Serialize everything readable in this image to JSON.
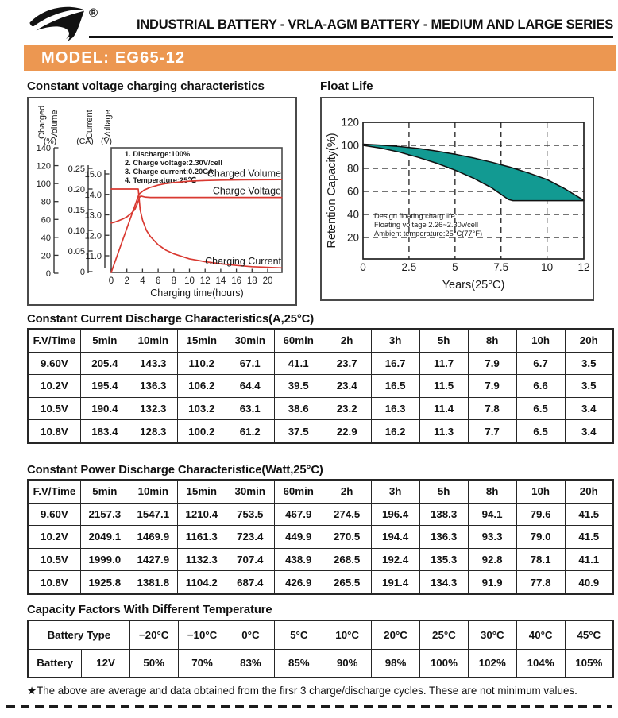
{
  "header": {
    "series_title": "INDUSTRIAL BATTERY - VRLA-AGM BATTERY - MEDIUM AND LARGE SERIES",
    "registered_mark": "®"
  },
  "model_banner": {
    "label": "MODEL: EG65-12"
  },
  "colors": {
    "banner_orange": "#EC9751",
    "curve_red": "#D93931",
    "band_teal": "#129A92"
  },
  "charging_chart": {
    "title": "Constant voltage charging characteristics",
    "conditions": [
      "1. Discharge:100%",
      "2. Charge voltage:2.30V/cell",
      "3. Charge current:0.20CA",
      "4. Temperature:25℃"
    ],
    "axis_charged_volume": {
      "title_words": [
        "Charged",
        "Volume"
      ],
      "unit": "(%)",
      "ticks": [
        "140",
        "120",
        "100",
        "80",
        "60",
        "40",
        "20",
        "0"
      ]
    },
    "axis_current": {
      "title_words": [
        "Current"
      ],
      "unit": "(CA)",
      "ticks": [
        "0.25",
        "0.20",
        "0.15",
        "0.10",
        "0.05",
        "0"
      ]
    },
    "axis_voltage": {
      "title_words": [
        "Voltage"
      ],
      "unit": "(V)",
      "ticks": [
        "15.0",
        "14.0",
        "13.0",
        "12.0",
        "11.0"
      ]
    },
    "x_axis": {
      "title": "Charging time(hours)",
      "ticks": [
        "0",
        "2",
        "4",
        "6",
        "8",
        "10",
        "12",
        "14",
        "16",
        "18",
        "20"
      ]
    },
    "curve_labels": {
      "charged_volume": "Charged Volume",
      "charge_voltage": "Charge Voltage",
      "charging_current": "Charging Current"
    }
  },
  "float_life_chart": {
    "title": "Float Life",
    "y_label": "Retention Capacity(%)",
    "x_label": "Years(25°C)",
    "y_ticks": [
      "120",
      "100",
      "80",
      "60",
      "40",
      "20"
    ],
    "x_ticks": [
      "0",
      "2.5",
      "5",
      "7.5",
      "10",
      "12"
    ],
    "note_lines": [
      "Design floating charg life:",
      "Floating voltage 2.26~2.30v/cell",
      "Ambient temperature:25°C(77°F)"
    ]
  },
  "chart_data": [
    {
      "type": "line",
      "title": "Constant voltage charging characteristics",
      "xlabel": "Charging time(hours)",
      "xlim": [
        0,
        21.8
      ],
      "series": [
        {
          "name": "Charged Volume",
          "unit": "%",
          "axis_range": [
            0,
            140
          ],
          "points": [
            [
              0,
              0
            ],
            [
              3.55,
              88
            ],
            [
              4.2,
              92.5
            ],
            [
              5,
              95.5
            ],
            [
              6,
              98
            ],
            [
              7,
              99.8
            ],
            [
              8,
              101
            ],
            [
              10,
              102.5
            ],
            [
              12,
              103.2
            ],
            [
              14,
              103.7
            ],
            [
              17,
              104
            ],
            [
              21.8,
              104.2
            ]
          ]
        },
        {
          "name": "Charge Voltage",
          "unit": "V",
          "axis_range": [
            11,
            15
          ],
          "points": [
            [
              0,
              12.6
            ],
            [
              0.5,
              12.65
            ],
            [
              1,
              12.72
            ],
            [
              1.5,
              12.8
            ],
            [
              2,
              12.9
            ],
            [
              2.5,
              13.05
            ],
            [
              3,
              13.25
            ],
            [
              3.3,
              13.5
            ],
            [
              3.6,
              13.85
            ],
            [
              3.8,
              13.92
            ],
            [
              4.3,
              13.87
            ],
            [
              5,
              13.85
            ],
            [
              21.8,
              13.85
            ]
          ]
        },
        {
          "name": "Charging Current",
          "unit": "CA",
          "axis_range": [
            0,
            0.25
          ],
          "points": [
            [
              0,
              0.2
            ],
            [
              3.45,
              0.2
            ],
            [
              3.55,
              0.18
            ],
            [
              3.7,
              0.15
            ],
            [
              4,
              0.125
            ],
            [
              4.5,
              0.1
            ],
            [
              5,
              0.085
            ],
            [
              6,
              0.065
            ],
            [
              7,
              0.052
            ],
            [
              8,
              0.043
            ],
            [
              10,
              0.031
            ],
            [
              12,
              0.024
            ],
            [
              14,
              0.019
            ],
            [
              16,
              0.015
            ],
            [
              18,
              0.012
            ],
            [
              21.8,
              0.009
            ]
          ]
        }
      ]
    },
    {
      "type": "area",
      "title": "Float Life",
      "xlabel": "Years(25°C)",
      "ylabel": "Retention Capacity(%)",
      "xlim": [
        0,
        12
      ],
      "ylim": [
        0,
        120
      ],
      "series": [
        {
          "name": "retention upper bound",
          "points": [
            [
              0,
              101
            ],
            [
              1,
              100.2
            ],
            [
              2,
              99
            ],
            [
              3,
              97.3
            ],
            [
              4,
              95
            ],
            [
              5,
              92.3
            ],
            [
              6,
              89
            ],
            [
              7,
              85.3
            ],
            [
              8,
              81
            ],
            [
              9,
              76
            ],
            [
              10,
              70.3
            ],
            [
              11,
              62
            ],
            [
              12,
              52.3
            ]
          ]
        },
        {
          "name": "retention lower bound",
          "points": [
            [
              0,
              100
            ],
            [
              1,
              97.5
            ],
            [
              2,
              94
            ],
            [
              3,
              89.5
            ],
            [
              4,
              84.5
            ],
            [
              5,
              78.5
            ],
            [
              6,
              71.5
            ],
            [
              7,
              63
            ],
            [
              7.9,
              53
            ],
            [
              8.15,
              52
            ],
            [
              12,
              52
            ]
          ]
        }
      ]
    }
  ],
  "tables": {
    "constant_current": {
      "title": "Constant Current Discharge Characteristics(A,25°C)",
      "headers": [
        "F.V/Time",
        "5min",
        "10min",
        "15min",
        "30min",
        "60min",
        "2h",
        "3h",
        "5h",
        "8h",
        "10h",
        "20h"
      ],
      "rows": [
        [
          "9.60V",
          "205.4",
          "143.3",
          "110.2",
          "67.1",
          "41.1",
          "23.7",
          "16.7",
          "11.7",
          "7.9",
          "6.7",
          "3.5"
        ],
        [
          "10.2V",
          "195.4",
          "136.3",
          "106.2",
          "64.4",
          "39.5",
          "23.4",
          "16.5",
          "11.5",
          "7.9",
          "6.6",
          "3.5"
        ],
        [
          "10.5V",
          "190.4",
          "132.3",
          "103.2",
          "63.1",
          "38.6",
          "23.2",
          "16.3",
          "11.4",
          "7.8",
          "6.5",
          "3.4"
        ],
        [
          "10.8V",
          "183.4",
          "128.3",
          "100.2",
          "61.2",
          "37.5",
          "22.9",
          "16.2",
          "11.3",
          "7.7",
          "6.5",
          "3.4"
        ]
      ]
    },
    "constant_power": {
      "title": "Constant Power Discharge Characteristice(Watt,25°C)",
      "headers": [
        "F.V/Time",
        "5min",
        "10min",
        "15min",
        "30min",
        "60min",
        "2h",
        "3h",
        "5h",
        "8h",
        "10h",
        "20h"
      ],
      "rows": [
        [
          "9.60V",
          "2157.3",
          "1547.1",
          "1210.4",
          "753.5",
          "467.9",
          "274.5",
          "196.4",
          "138.3",
          "94.1",
          "79.6",
          "41.5"
        ],
        [
          "10.2V",
          "2049.1",
          "1469.9",
          "1161.3",
          "723.4",
          "449.9",
          "270.5",
          "194.4",
          "136.3",
          "93.3",
          "79.0",
          "41.5"
        ],
        [
          "10.5V",
          "1999.0",
          "1427.9",
          "1132.3",
          "707.4",
          "438.9",
          "268.5",
          "192.4",
          "135.3",
          "92.8",
          "78.1",
          "41.1"
        ],
        [
          "10.8V",
          "1925.8",
          "1381.8",
          "1104.2",
          "687.4",
          "426.9",
          "265.5",
          "191.4",
          "134.3",
          "91.9",
          "77.8",
          "40.9"
        ]
      ]
    },
    "capacity_factors": {
      "title": "Capacity Factors With Different Temperature",
      "group_header": "Battery Type",
      "temp_headers": [
        "−20°C",
        "−10°C",
        "0°C",
        "5°C",
        "10°C",
        "20°C",
        "25°C",
        "30°C",
        "40°C",
        "45°C"
      ],
      "row_label": "Battery",
      "battery_type": "12V",
      "values": [
        "50%",
        "70%",
        "83%",
        "85%",
        "90%",
        "98%",
        "100%",
        "102%",
        "104%",
        "105%"
      ]
    }
  },
  "footnote": "★The above are average and data obtained from the firsr 3 charge/discharge cycles. These are not minimum values."
}
